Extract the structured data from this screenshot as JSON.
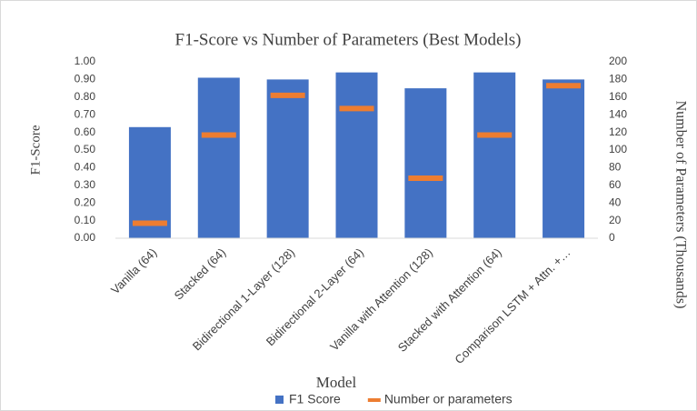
{
  "chart_data": {
    "type": "bar",
    "title": "F1-Score vs Number of Parameters (Best Models)",
    "xlabel": "Model",
    "ylabel": "F1-Score",
    "y2label": "Number of Parameters (Thousands)",
    "categories": [
      "Vanilla (64)",
      "Stacked (64)",
      "Bidirectional 1-Layer (128)",
      "Bidirectional 2-Layer (64)",
      "Vanilla with Attention (128)",
      "Stacked with Attention (64)",
      "Comparison LSTM + Attn. +…"
    ],
    "series": [
      {
        "name": "F1 Score",
        "color": "#4472c4",
        "values": [
          0.63,
          0.91,
          0.9,
          0.94,
          0.85,
          0.94,
          0.9
        ]
      },
      {
        "name": "Number or parameters",
        "color": "#ed7d31",
        "axis": "y2",
        "mark": "dash",
        "values": [
          17,
          117,
          162,
          147,
          68,
          117,
          173
        ]
      }
    ],
    "ylim": [
      0,
      1
    ],
    "yticks": [
      {
        "value": 0,
        "label": "0.00"
      },
      {
        "value": 0.1,
        "label": "0.10"
      },
      {
        "value": 0.2,
        "label": "0.20"
      },
      {
        "value": 0.3,
        "label": "0.30"
      },
      {
        "value": 0.4,
        "label": "0.40"
      },
      {
        "value": 0.5,
        "label": "0.50"
      },
      {
        "value": 0.6,
        "label": "0.60"
      },
      {
        "value": 0.7,
        "label": "0.70"
      },
      {
        "value": 0.8,
        "label": "0.80"
      },
      {
        "value": 0.9,
        "label": "0.90"
      },
      {
        "value": 1,
        "label": "1.00"
      }
    ],
    "y2lim": [
      0,
      200
    ],
    "y2ticks": [
      0,
      20,
      40,
      60,
      80,
      100,
      120,
      140,
      160,
      180,
      200
    ],
    "legend": "bottom",
    "grid": false
  }
}
